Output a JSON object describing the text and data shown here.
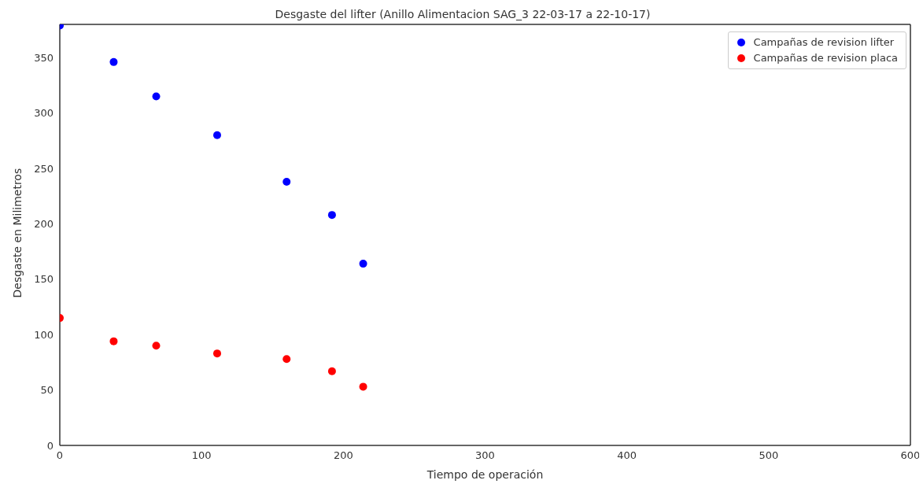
{
  "chart_data": {
    "type": "scatter",
    "title": "Desgaste del lifter (Anillo Alimentacion SAG_3 22-03-17 a 22-10-17)",
    "xlabel": "Tiempo de operación",
    "ylabel": "Desgaste en Milimetros",
    "x": [
      0,
      38,
      68,
      111,
      160,
      192,
      214
    ],
    "series": [
      {
        "name": "Campañas de revision lifter",
        "color": "#0000ff",
        "values": [
          379,
          346,
          315,
          280,
          238,
          208,
          164
        ]
      },
      {
        "name": "Campañas de revision placa",
        "color": "#ff0000",
        "values": [
          115,
          94,
          90,
          83,
          78,
          67,
          53
        ]
      }
    ],
    "xlim": [
      0,
      600
    ],
    "xticks": [
      0,
      100,
      200,
      300,
      400,
      500,
      600
    ],
    "ylim": [
      0,
      380
    ],
    "yticks": [
      0,
      50,
      100,
      150,
      200,
      250,
      300,
      350
    ],
    "grid": false,
    "legend": "top right",
    "marker": "circle"
  }
}
